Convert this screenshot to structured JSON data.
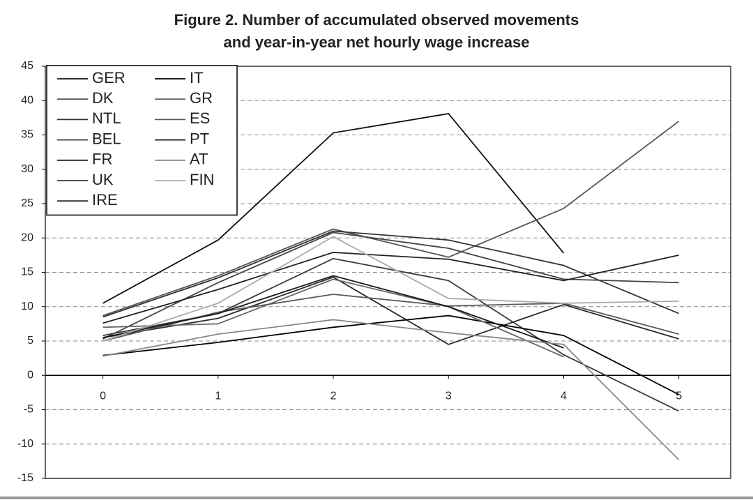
{
  "chart_data": {
    "type": "line",
    "title": [
      "Figure 2. Number of accumulated observed movements",
      "and year-in-year net hourly wage increase"
    ],
    "x": [
      0,
      1,
      2,
      3,
      4,
      5
    ],
    "xlim": [
      -0.5,
      5.45
    ],
    "xticks": [
      0,
      1,
      2,
      3,
      4,
      5
    ],
    "ylim": [
      -15,
      45
    ],
    "yticks": [
      -15,
      -10,
      -5,
      0,
      5,
      10,
      15,
      20,
      25,
      30,
      35,
      40,
      45
    ],
    "grid": true,
    "legend": "upper-left",
    "series": [
      {
        "name": "GER",
        "color": "#111111",
        "values": [
          10.5,
          19.7,
          35.3,
          38.1,
          17.8,
          null
        ]
      },
      {
        "name": "DK",
        "color": "#555555",
        "values": [
          8.7,
          14.5,
          21.3,
          17.2,
          24.3,
          37
        ]
      },
      {
        "name": "NTL",
        "color": "#333333",
        "values": [
          8.5,
          14.2,
          21,
          19.7,
          16,
          9
        ]
      },
      {
        "name": "BEL",
        "color": "#444444",
        "values": [
          5.3,
          13.5,
          20.8,
          18.5,
          14,
          13.5
        ]
      },
      {
        "name": "FR",
        "color": "#222222",
        "values": [
          7.6,
          12.5,
          17.9,
          16.9,
          13.8,
          17.5
        ]
      },
      {
        "name": "UK",
        "color": "#3a3a3a",
        "values": [
          5.8,
          9,
          17,
          13.8,
          3,
          -5.2
        ]
      },
      {
        "name": "IRE",
        "color": "#2a2a2a",
        "values": [
          5.5,
          8.3,
          14.3,
          4.5,
          10.3,
          5.3
        ]
      },
      {
        "name": "IT",
        "color": "#000000",
        "values": [
          2.9,
          4.8,
          7,
          8.7,
          5.8,
          -2.8
        ]
      },
      {
        "name": "GR",
        "color": "#666666",
        "values": [
          7,
          7.5,
          14,
          10,
          2.7,
          null
        ]
      },
      {
        "name": "ES",
        "color": "#5a5a5a",
        "values": [
          5,
          9.2,
          11.8,
          10.1,
          10.5,
          6
        ]
      },
      {
        "name": "PT",
        "color": "#1a1a1a",
        "values": [
          5.5,
          9,
          14.5,
          10,
          4,
          null
        ]
      },
      {
        "name": "AT",
        "color": "#888888",
        "values": [
          2.8,
          6,
          8.1,
          6.2,
          4.5,
          -12.3
        ]
      },
      {
        "name": "FIN",
        "color": "#aaaaaa",
        "values": [
          5,
          10.5,
          20.2,
          11.2,
          10.5,
          10.8
        ]
      }
    ]
  }
}
